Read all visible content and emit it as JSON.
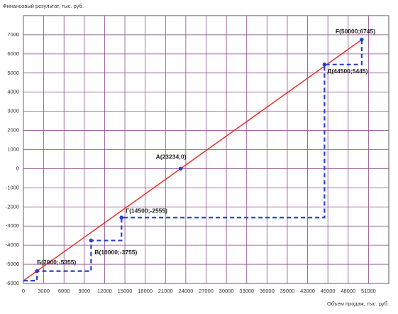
{
  "chart_data": {
    "type": "line",
    "y_label": "Финансовый результат, тыс. руб.",
    "x_label": "Объем продаж, тыс. руб.",
    "xlim": [
      0,
      54000
    ],
    "ylim": [
      -6000,
      8000
    ],
    "xticks": [
      0,
      3000,
      6000,
      9000,
      12000,
      15000,
      18000,
      21000,
      24000,
      27000,
      30000,
      33000,
      36000,
      39000,
      42000,
      45000,
      48000,
      51000
    ],
    "yticks": [
      -6000,
      -5000,
      -4000,
      -3000,
      -2000,
      -1000,
      0,
      1000,
      2000,
      3000,
      4000,
      5000,
      6000,
      7000
    ],
    "grid": true,
    "grid_color": "#8a4a8a",
    "series": [
      {
        "color": "#e8312f",
        "dash": false,
        "x": [
          0,
          50000
        ],
        "values": [
          -5855,
          6745
        ]
      },
      {
        "color": "#2a3fd0",
        "dash": true,
        "x": [
          0,
          2000,
          2000,
          10000,
          10000,
          14500,
          14500,
          44500,
          44500,
          50000,
          50000
        ],
        "values": [
          -5855,
          -5855,
          -5355,
          -5355,
          -3755,
          -3755,
          -2555,
          -2555,
          5445,
          5445,
          6745
        ]
      }
    ],
    "points": [
      {
        "label": "Б(2000;-5355)",
        "x": 2000,
        "y": -5355
      },
      {
        "label": "В(10000;-3755)",
        "x": 10000,
        "y": -3755
      },
      {
        "label": "Г(14500;-2555)",
        "x": 14500,
        "y": -2555
      },
      {
        "label": "А(23234;0)",
        "x": 23234,
        "y": 0
      },
      {
        "label": "Д(44500;5445)",
        "x": 44500,
        "y": 5445
      },
      {
        "label": "F(50000;6745)",
        "x": 50000,
        "y": 6745
      }
    ],
    "point_color": "#2a3fd0"
  }
}
